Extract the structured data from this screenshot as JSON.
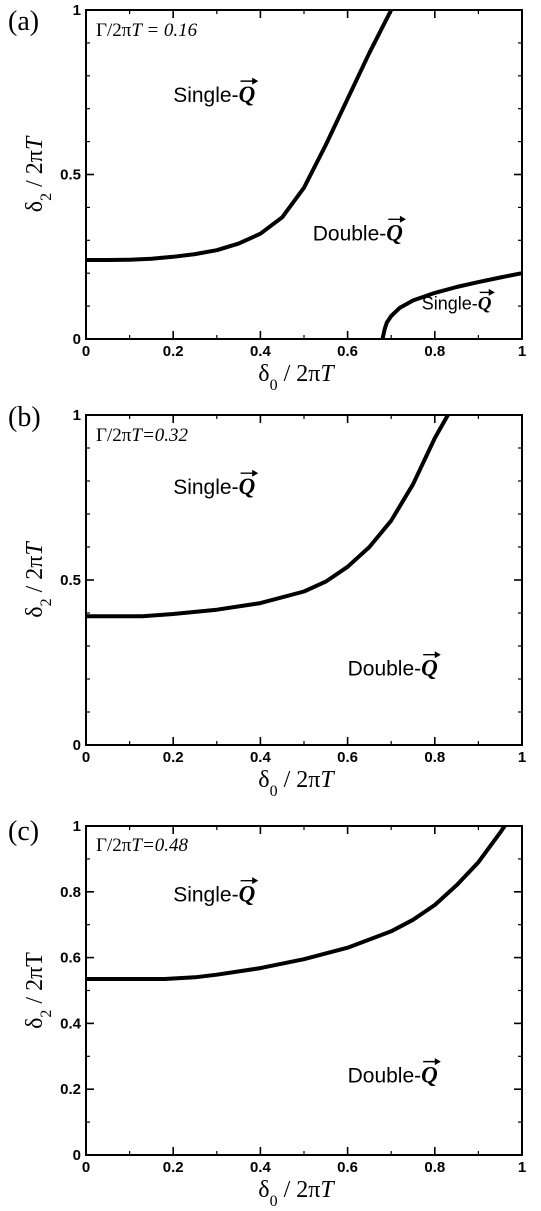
{
  "chart_data": [
    {
      "type": "line",
      "panel": "(a)",
      "parameter": {
        "lhs": "Γ/2π",
        "T": "T",
        "value": " = 0.16"
      },
      "xlabel": {
        "delta": "δ",
        "sub": "0",
        "rest": " / 2π",
        "T": "T"
      },
      "ylabel": {
        "delta": "δ",
        "sub": "2",
        "rest": " / 2π",
        "T": "T"
      },
      "xlim": [
        0,
        1
      ],
      "ylim": [
        0,
        1
      ],
      "xticks": [
        0,
        0.2,
        0.4,
        0.6,
        0.8,
        1
      ],
      "xtick_labels": [
        "0",
        "0.2",
        "0.4",
        "0.6",
        "0.8",
        "1"
      ],
      "yticks": [
        0,
        0.5,
        1
      ],
      "ytick_labels": [
        "0",
        "0.5",
        "1"
      ],
      "grid": false,
      "regions": [
        {
          "name": "Single-",
          "q": "Q",
          "x": 0.2,
          "y": 0.72,
          "anchor": "start"
        },
        {
          "name": "Double-",
          "q": "Q",
          "x": 0.52,
          "y": 0.3,
          "anchor": "start"
        },
        {
          "name": "Single-",
          "q": "Q",
          "x": 0.77,
          "y": 0.09,
          "anchor": "start"
        }
      ],
      "series": [
        {
          "x": [
            0,
            0.05,
            0.1,
            0.15,
            0.2,
            0.25,
            0.3,
            0.35,
            0.4,
            0.45,
            0.5,
            0.55,
            0.6,
            0.65,
            0.7
          ],
          "y": [
            0.24,
            0.24,
            0.241,
            0.244,
            0.25,
            0.258,
            0.27,
            0.29,
            0.32,
            0.37,
            0.46,
            0.59,
            0.73,
            0.87,
            1.0
          ]
        },
        {
          "x": [
            0.68,
            0.685,
            0.69,
            0.7,
            0.72,
            0.75,
            0.8,
            0.85,
            0.9,
            0.95,
            1.0
          ],
          "y": [
            0.0,
            0.03,
            0.05,
            0.07,
            0.095,
            0.117,
            0.14,
            0.158,
            0.173,
            0.187,
            0.2
          ]
        }
      ]
    },
    {
      "type": "line",
      "panel": "(b)",
      "parameter": {
        "lhs": "Γ/2π",
        "T": "T",
        "value": "=0.32"
      },
      "xlabel": {
        "delta": "δ",
        "sub": "0",
        "rest": " / 2π",
        "T": "T"
      },
      "ylabel": {
        "delta": "δ",
        "sub": "2",
        "rest": " / 2π",
        "T": "T"
      },
      "xlim": [
        0,
        1
      ],
      "ylim": [
        0,
        1
      ],
      "xticks": [
        0,
        0.2,
        0.4,
        0.6,
        0.8,
        1
      ],
      "xtick_labels": [
        "0",
        "0.2",
        "0.4",
        "0.6",
        "0.8",
        "1"
      ],
      "yticks": [
        0,
        0.5,
        1
      ],
      "ytick_labels": [
        "0",
        "0.5",
        "1"
      ],
      "grid": false,
      "regions": [
        {
          "name": "Single-",
          "q": "Q",
          "x": 0.2,
          "y": 0.76,
          "anchor": "start"
        },
        {
          "name": "Double-",
          "q": "Q",
          "x": 0.6,
          "y": 0.21,
          "anchor": "start"
        }
      ],
      "series": [
        {
          "x": [
            0,
            0.1,
            0.13,
            0.2,
            0.3,
            0.4,
            0.5,
            0.55,
            0.6,
            0.65,
            0.7,
            0.75,
            0.8,
            0.83
          ],
          "y": [
            0.39,
            0.39,
            0.39,
            0.397,
            0.41,
            0.43,
            0.465,
            0.495,
            0.54,
            0.6,
            0.68,
            0.79,
            0.93,
            1.0
          ]
        }
      ]
    },
    {
      "type": "line",
      "panel": "(c)",
      "parameter": {
        "lhs": "Γ/2π",
        "T": "T",
        "value": "=0.48"
      },
      "xlabel": {
        "delta": "δ",
        "sub": "0",
        "rest": " / 2π",
        "T": "T"
      },
      "ylabel": {
        "delta": "δ",
        "sub": "2",
        "rest": " / 2πT",
        "T": ""
      },
      "xlim": [
        0,
        1
      ],
      "ylim": [
        0,
        1
      ],
      "xticks": [
        0,
        0.2,
        0.4,
        0.6,
        0.8,
        1
      ],
      "xtick_labels": [
        "0",
        "0.2",
        "0.4",
        "0.6",
        "0.8",
        "1"
      ],
      "yticks": [
        0,
        0.2,
        0.4,
        0.6,
        0.8,
        1
      ],
      "ytick_labels": [
        "0",
        "0.2",
        "0.4",
        "0.6",
        "0.8",
        "1"
      ],
      "grid": false,
      "regions": [
        {
          "name": "Single-",
          "q": "Q",
          "x": 0.2,
          "y": 0.77,
          "anchor": "start"
        },
        {
          "name": "Double-",
          "q": "Q",
          "x": 0.6,
          "y": 0.22,
          "anchor": "start"
        }
      ],
      "series": [
        {
          "x": [
            0,
            0.1,
            0.18,
            0.25,
            0.3,
            0.4,
            0.5,
            0.6,
            0.7,
            0.75,
            0.8,
            0.85,
            0.9,
            0.95,
            0.96
          ],
          "y": [
            0.535,
            0.535,
            0.535,
            0.54,
            0.548,
            0.568,
            0.595,
            0.63,
            0.68,
            0.715,
            0.76,
            0.82,
            0.89,
            0.98,
            1.0
          ]
        }
      ]
    }
  ]
}
